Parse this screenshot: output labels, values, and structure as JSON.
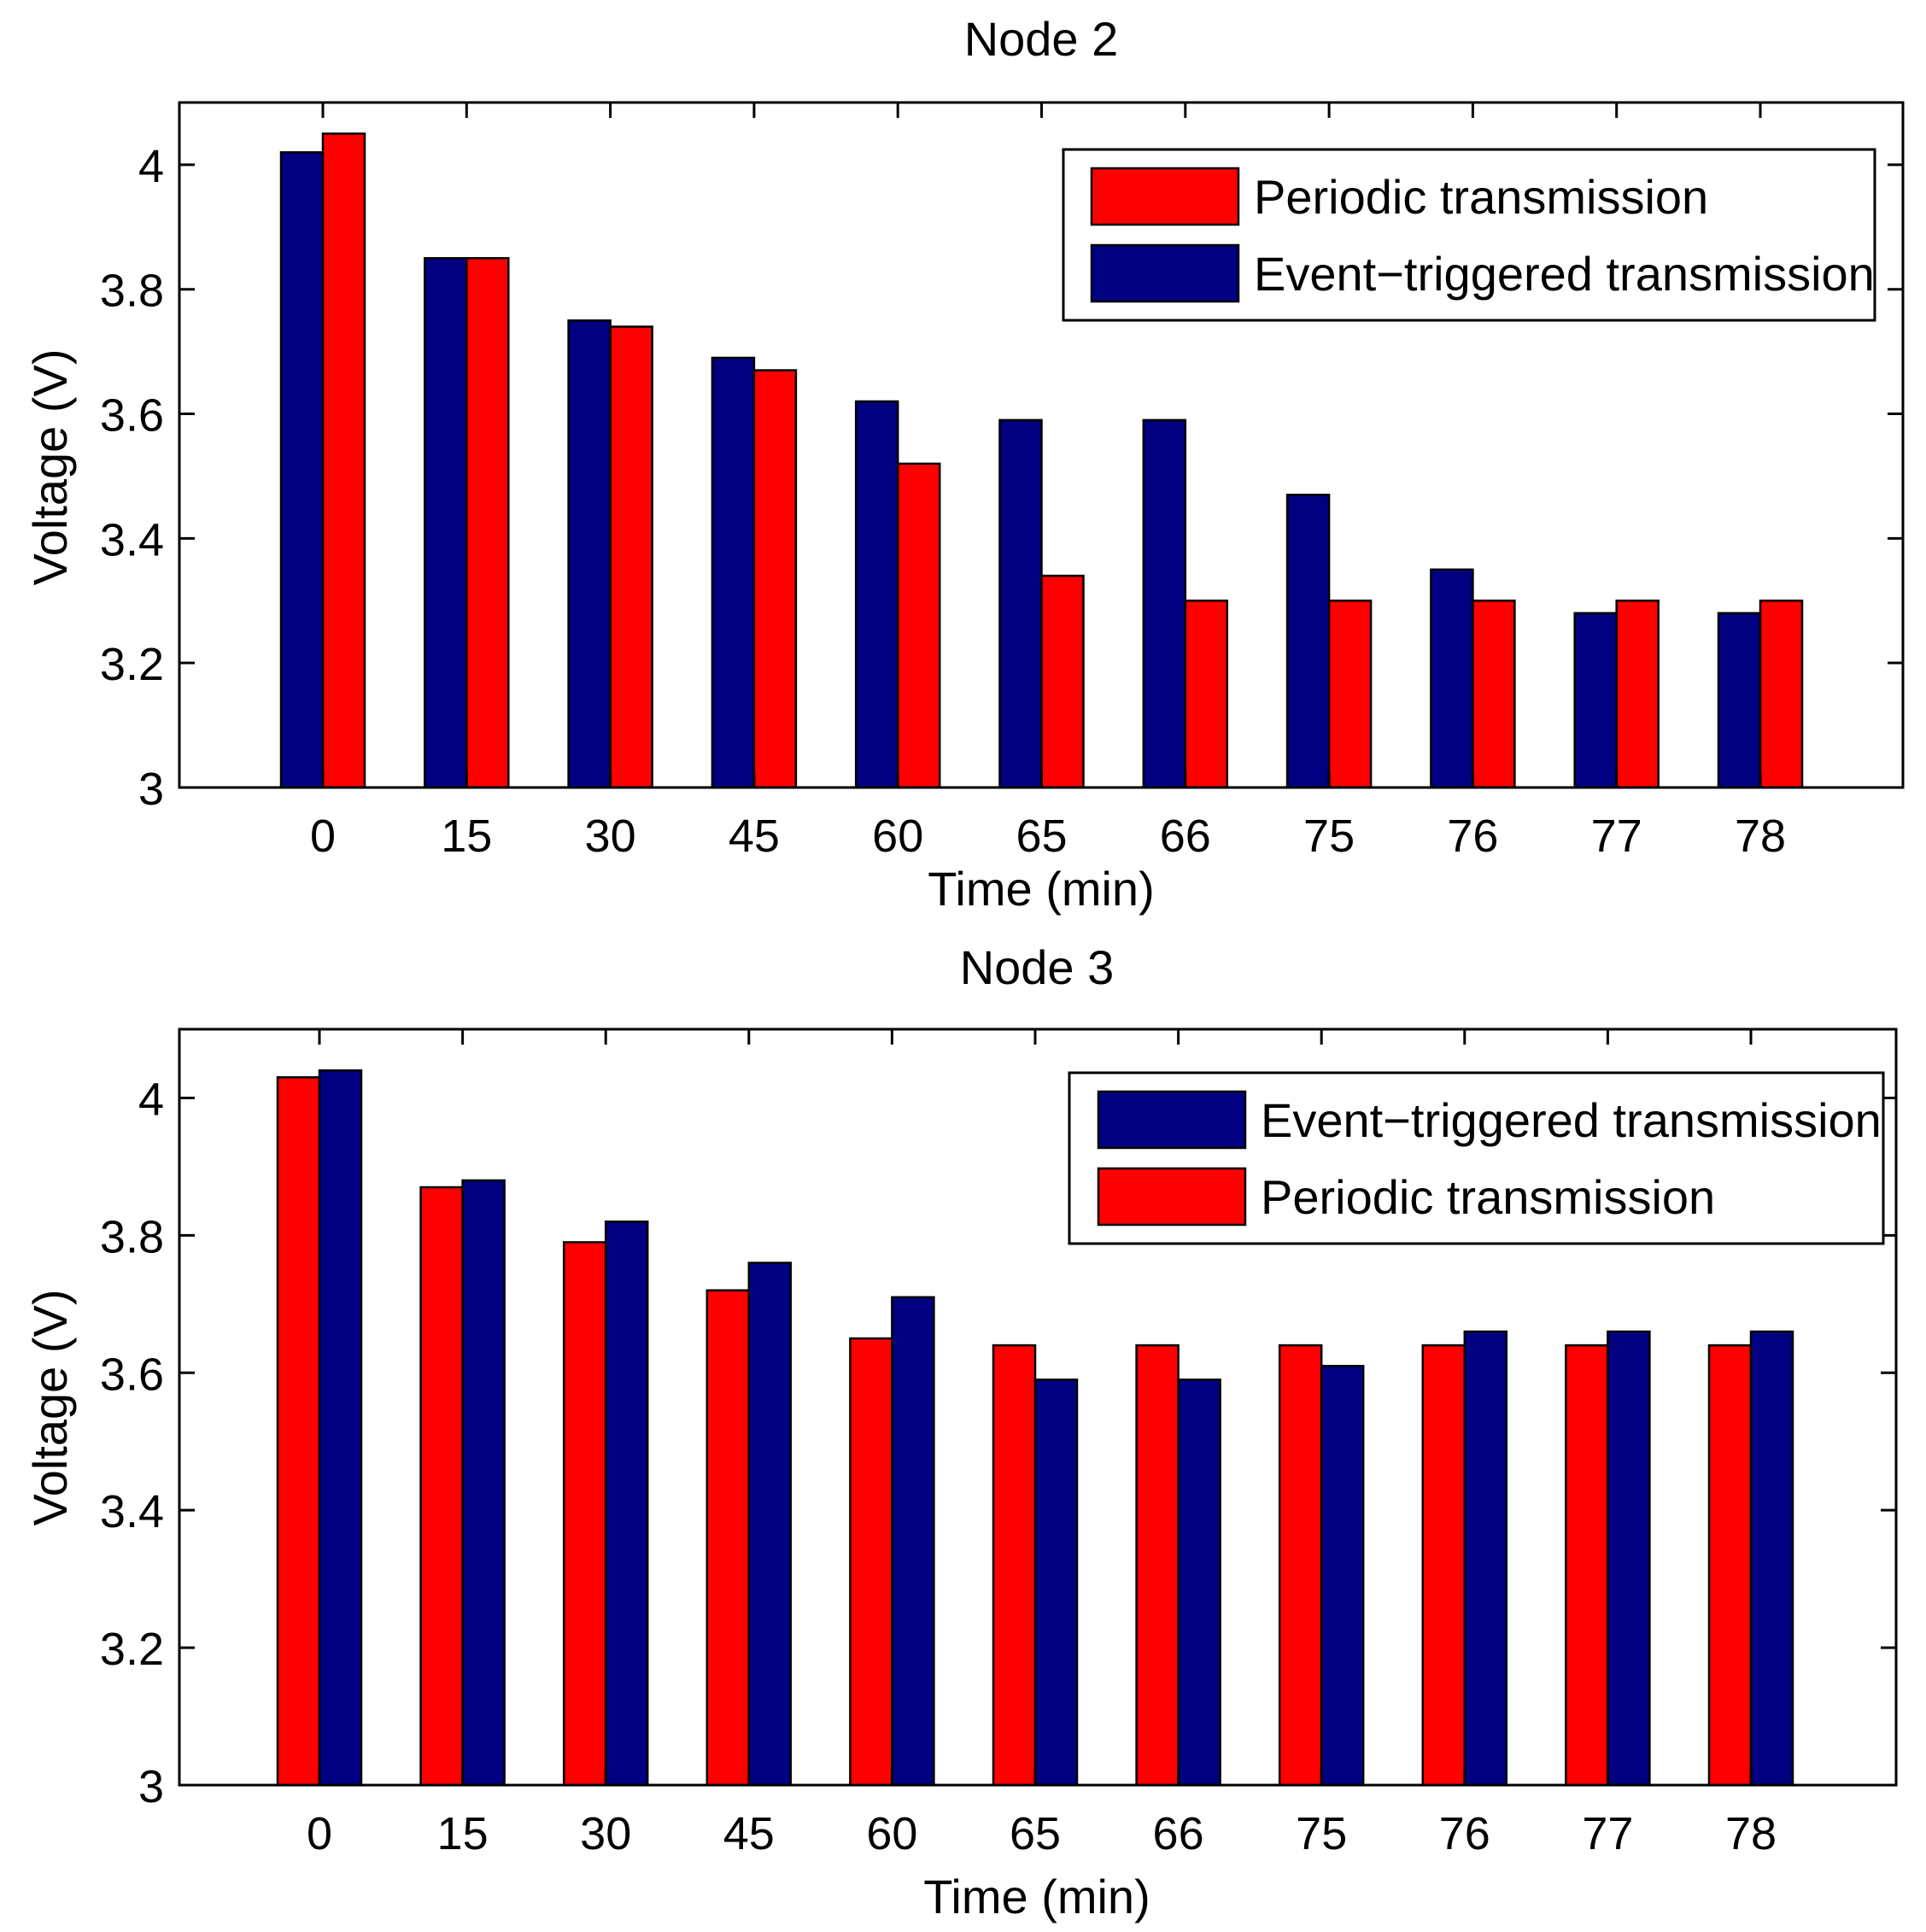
{
  "chart_data": [
    {
      "type": "bar",
      "title": "Node 2",
      "xlabel": "Time (min)",
      "ylabel": "Voltage (V)",
      "ylim": [
        3,
        4.1
      ],
      "yticks": [
        "3",
        "3.2",
        "3.4",
        "3.6",
        "3.8",
        "4"
      ],
      "grid": false,
      "legend_position": "top-right",
      "categories": [
        "0",
        "15",
        "30",
        "45",
        "60",
        "65",
        "66",
        "75",
        "76",
        "77",
        "78"
      ],
      "series": [
        {
          "name": "Event−triggered transmission",
          "color": "#000080",
          "values": [
            4.02,
            3.85,
            3.75,
            3.69,
            3.62,
            3.59,
            3.59,
            3.47,
            3.35,
            3.28,
            3.28
          ]
        },
        {
          "name": "Periodic transmission",
          "color": "#ff0000",
          "values": [
            4.05,
            3.85,
            3.74,
            3.67,
            3.52,
            3.34,
            3.3,
            3.3,
            3.3,
            3.3,
            3.3
          ]
        }
      ],
      "legend_order": [
        1,
        0
      ]
    },
    {
      "type": "bar",
      "title": "Node 3",
      "xlabel": "Time (min)",
      "ylabel": "Voltage (V)",
      "ylim": [
        3,
        4.1
      ],
      "yticks": [
        "3",
        "3.2",
        "3.4",
        "3.6",
        "3.8",
        "4"
      ],
      "grid": false,
      "legend_position": "top-right",
      "categories": [
        "0",
        "15",
        "30",
        "45",
        "60",
        "65",
        "66",
        "75",
        "76",
        "77",
        "78"
      ],
      "series": [
        {
          "name": "Periodic transmission",
          "color": "#ff0000",
          "values": [
            4.03,
            3.87,
            3.79,
            3.72,
            3.65,
            3.64,
            3.64,
            3.64,
            3.64,
            3.64,
            3.64
          ]
        },
        {
          "name": "Event−triggered transmission",
          "color": "#000080",
          "values": [
            4.04,
            3.88,
            3.82,
            3.76,
            3.71,
            3.59,
            3.59,
            3.61,
            3.66,
            3.66,
            3.66
          ]
        }
      ],
      "legend_order": [
        1,
        0
      ]
    }
  ]
}
